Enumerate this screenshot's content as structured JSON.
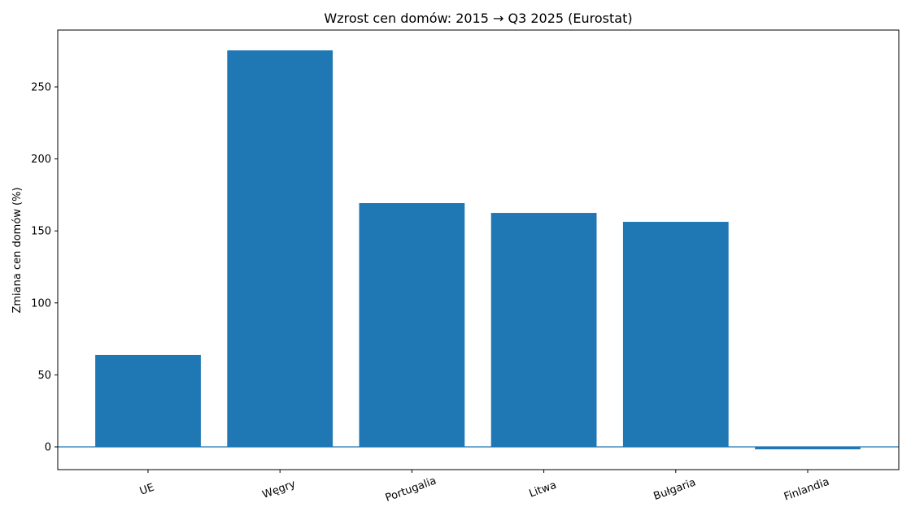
{
  "chart_data": {
    "type": "bar",
    "title": "Wzrost cen domów: 2015 → Q3 2025 (Eurostat)",
    "y_label": "Zmiana cen domów (%)",
    "categories": [
      "UE",
      "Węgry",
      "Portugalia",
      "Litwa",
      "Bułgaria",
      "Finlandia"
    ],
    "values": [
      63.8,
      275.4,
      169.3,
      162.5,
      156.3,
      -1.7
    ],
    "color": "#1f77b4",
    "ylim": [
      -15.8,
      289.5
    ],
    "yticks": [
      0,
      50,
      100,
      150,
      200,
      250
    ],
    "hline": 0,
    "grid": false
  }
}
